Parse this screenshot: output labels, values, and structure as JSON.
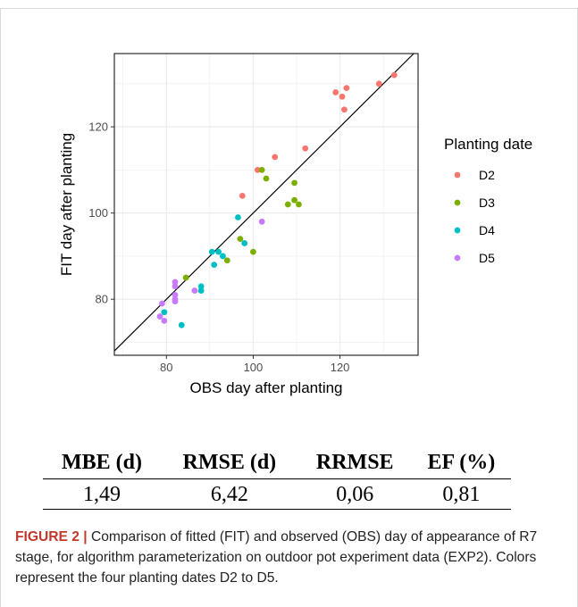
{
  "chart_data": {
    "type": "scatter",
    "xlabel": "OBS day after planting",
    "ylabel": "FIT day after planting",
    "xlim": [
      68,
      138
    ],
    "ylim": [
      67,
      137
    ],
    "xticks": [
      80,
      100,
      120
    ],
    "yticks": [
      80,
      100,
      120
    ],
    "grid": true,
    "reference_line": "1:1",
    "legend": {
      "title": "Planting date",
      "placement": "right"
    },
    "series": [
      {
        "name": "D2",
        "color": "#F8766D",
        "points": [
          [
            132.5,
            132
          ],
          [
            129,
            130
          ],
          [
            121.5,
            129
          ],
          [
            119,
            128
          ],
          [
            120.5,
            127
          ],
          [
            121,
            124
          ],
          [
            112,
            115
          ],
          [
            105,
            113
          ],
          [
            101,
            110
          ],
          [
            97.5,
            104
          ]
        ]
      },
      {
        "name": "D3",
        "color": "#7CAE00",
        "points": [
          [
            102,
            110
          ],
          [
            103,
            108
          ],
          [
            109.5,
            107
          ],
          [
            109.5,
            103
          ],
          [
            108,
            102
          ],
          [
            110.5,
            102
          ],
          [
            97,
            94
          ],
          [
            100,
            91
          ],
          [
            94,
            89
          ],
          [
            84.5,
            85
          ]
        ]
      },
      {
        "name": "D4",
        "color": "#00BFC4",
        "points": [
          [
            96.5,
            99
          ],
          [
            98,
            93
          ],
          [
            92,
            91
          ],
          [
            90.5,
            91
          ],
          [
            93,
            90
          ],
          [
            91,
            88
          ],
          [
            88,
            83
          ],
          [
            88,
            82
          ],
          [
            79.5,
            77
          ],
          [
            83.5,
            74
          ]
        ]
      },
      {
        "name": "D5",
        "color": "#C77CFF",
        "points": [
          [
            102,
            98
          ],
          [
            82,
            84
          ],
          [
            82,
            83
          ],
          [
            86.5,
            82
          ],
          [
            82,
            81
          ],
          [
            82,
            80
          ],
          [
            82,
            79.5
          ],
          [
            79,
            79
          ],
          [
            78.5,
            76
          ],
          [
            79.5,
            75
          ]
        ]
      }
    ]
  },
  "metrics_table": {
    "headers": [
      "MBE (d)",
      "RMSE (d)",
      "RRMSE",
      "EF (%)"
    ],
    "values": [
      "1,49",
      "6,42",
      "0,06",
      "0,81"
    ]
  },
  "caption": {
    "label": "FIGURE 2 |",
    "text": " Comparison of fitted (FIT) and observed (OBS) day of appearance of R7 stage, for algorithm parameterization on outdoor pot experiment data (EXP2). Colors represent the four planting dates D2 to D5."
  },
  "colors": {
    "panel_border": "#000000",
    "grid": "#ebebeb",
    "axis_text": "#4d4d4d"
  }
}
